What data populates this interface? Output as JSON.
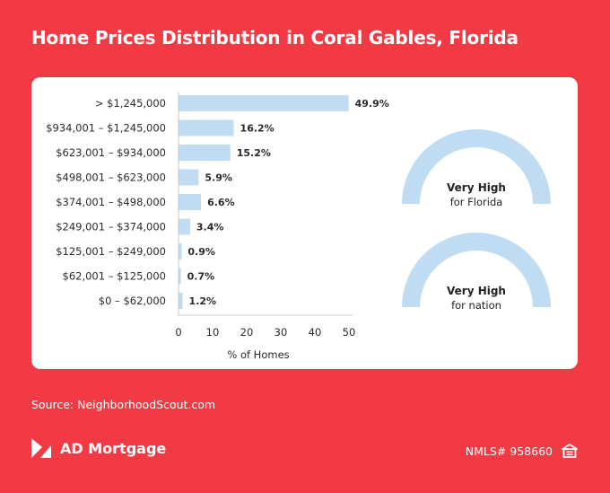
{
  "header": {
    "title": "Home Prices Distribution in Coral Gables, Florida"
  },
  "chart_data": {
    "type": "bar",
    "orientation": "horizontal",
    "categories": [
      "> $1,245,000",
      "$934,001 – $1,245,000",
      "$623,001 – $934,000",
      "$498,001 – $623,000",
      "$374,001 – $498,000",
      "$249,001 – $374,000",
      "$125,001 – $249,000",
      "$62,001 – $125,000",
      "$0 – $62,000"
    ],
    "values": [
      49.9,
      16.2,
      15.2,
      5.9,
      6.6,
      3.4,
      0.9,
      0.7,
      1.2
    ],
    "value_labels": [
      "49.9%",
      "16.2%",
      "15.2%",
      "5.9%",
      "6.6%",
      "3.4%",
      "0.9%",
      "0.7%",
      "1.2%"
    ],
    "xlabel": "% of Homes",
    "xlim": [
      0,
      50
    ],
    "xticks": [
      "0",
      "10",
      "20",
      "30",
      "40",
      "50"
    ],
    "bar_color": "#BFDCF3",
    "grid": false
  },
  "gauges": [
    {
      "level": "Very High",
      "scope": "for Florida"
    },
    {
      "level": "Very High",
      "scope": "for nation"
    }
  ],
  "gauge_color": "#BFDCF3",
  "footer": {
    "source": "Source: NeighborhoodScout.com",
    "brand": "AD Mortgage",
    "nmls": "NMLS# 958660",
    "logo_icon": "ad-mortgage-logo-icon",
    "housing_icon": "equal-housing-icon"
  },
  "colors": {
    "background": "#F23A44",
    "card": "#FFFFFF"
  }
}
